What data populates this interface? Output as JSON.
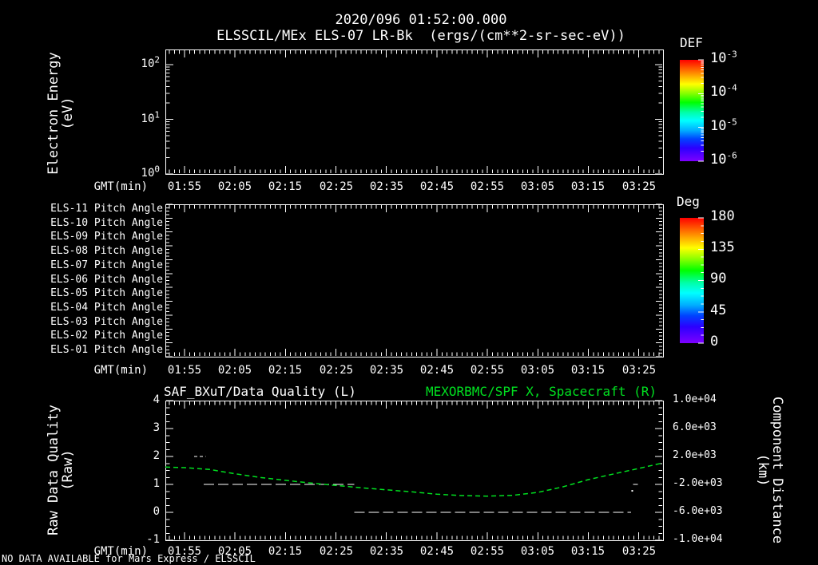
{
  "header": {
    "title": "2020/096 01:52:00.000",
    "subtitle": "ELSSCIL/MEx ELS-07 LR-Bk  (ergs/(cm**2-sr-sec-eV))"
  },
  "time_axis": {
    "label": "GMT(min)",
    "ticks": [
      "01:55",
      "02:05",
      "02:15",
      "02:25",
      "02:35",
      "02:45",
      "02:55",
      "03:05",
      "03:15",
      "03:25"
    ]
  },
  "panel1": {
    "ylabel_line1": "Electron Energy",
    "ylabel_line2": "(eV)",
    "yticks": [
      {
        "base": "10",
        "exp": "2"
      },
      {
        "base": "10",
        "exp": "1"
      },
      {
        "base": "10",
        "exp": "0"
      }
    ],
    "colorbar": {
      "title": "DEF",
      "labels": [
        {
          "base": "10",
          "exp": "-3"
        },
        {
          "base": "10",
          "exp": "-4"
        },
        {
          "base": "10",
          "exp": "-5"
        },
        {
          "base": "10",
          "exp": "-6"
        }
      ]
    }
  },
  "panel2": {
    "row_labels": [
      "ELS-11 Pitch Angle",
      "ELS-10 Pitch Angle",
      "ELS-09 Pitch Angle",
      "ELS-08 Pitch Angle",
      "ELS-07 Pitch Angle",
      "ELS-06 Pitch Angle",
      "ELS-05 Pitch Angle",
      "ELS-04 Pitch Angle",
      "ELS-03 Pitch Angle",
      "ELS-02 Pitch Angle",
      "ELS-01 Pitch Angle"
    ],
    "colorbar": {
      "title": "Deg",
      "labels": [
        "180",
        "135",
        "90",
        "45",
        "0"
      ]
    }
  },
  "panel3": {
    "title_left": "SAF_BXuT/Data Quality (L)",
    "title_right": "MEXORBMC/SPF X, Spacecraft (R)",
    "ylabel_left_line1": "Raw Data Quality",
    "ylabel_left_line2": "(Raw)",
    "ylabel_right_line1": "Component Distance",
    "ylabel_right_line2": "(km)",
    "yticks_left": [
      "4",
      "3",
      "2",
      "1",
      "0",
      "-1"
    ],
    "yticks_right": [
      "1.0e+04",
      "6.0e+03",
      "2.0e+03",
      "-2.0e+03",
      "-6.0e+03",
      "-1.0e+04"
    ]
  },
  "footer": {
    "no_data_text": "NO DATA AVAILABLE for Mars Express / ELSSCIL"
  },
  "colors": {
    "background": "#000000",
    "text": "#ffffff",
    "series_green": "#00e020",
    "rainbow": [
      {
        "at": 0.0,
        "c": "#ff0000"
      },
      {
        "at": 0.08,
        "c": "#ff5500"
      },
      {
        "at": 0.16,
        "c": "#ffaa00"
      },
      {
        "at": 0.24,
        "c": "#ffff00"
      },
      {
        "at": 0.33,
        "c": "#88ff00"
      },
      {
        "at": 0.42,
        "c": "#00ff00"
      },
      {
        "at": 0.52,
        "c": "#00ffaa"
      },
      {
        "at": 0.6,
        "c": "#00ffff"
      },
      {
        "at": 0.7,
        "c": "#00aaff"
      },
      {
        "at": 0.78,
        "c": "#0044ff"
      },
      {
        "at": 0.87,
        "c": "#2b00ff"
      },
      {
        "at": 1.0,
        "c": "#7d00ff"
      }
    ]
  },
  "chart_data": [
    {
      "panel": 1,
      "type": "heatmap",
      "title": "ELSSCIL/MEx ELS-07 LR-Bk (ergs/(cm**2-sr-sec-eV))",
      "ylabel": "Electron Energy (eV)",
      "yscale": "log",
      "ylim": [
        1,
        180
      ],
      "ytick_labels": [
        "10^0",
        "10^1",
        "10^2"
      ],
      "xlabel": "GMT(min)",
      "x_ticks": [
        "01:55",
        "02:05",
        "02:15",
        "02:25",
        "02:35",
        "02:45",
        "02:55",
        "03:05",
        "03:15",
        "03:25"
      ],
      "colorbar": {
        "title": "DEF",
        "scale": "log",
        "tick_labels": [
          "10^-3",
          "10^-4",
          "10^-5",
          "10^-6"
        ],
        "units": "ergs/(cm**2-sr-sec-eV)"
      },
      "values": [],
      "note": "panel is empty - no data plotted"
    },
    {
      "panel": 2,
      "type": "heatmap",
      "rows": [
        "ELS-11 Pitch Angle",
        "ELS-10 Pitch Angle",
        "ELS-09 Pitch Angle",
        "ELS-08 Pitch Angle",
        "ELS-07 Pitch Angle",
        "ELS-06 Pitch Angle",
        "ELS-05 Pitch Angle",
        "ELS-04 Pitch Angle",
        "ELS-03 Pitch Angle",
        "ELS-02 Pitch Angle",
        "ELS-01 Pitch Angle"
      ],
      "xlabel": "GMT(min)",
      "x_ticks": [
        "01:55",
        "02:05",
        "02:15",
        "02:25",
        "02:35",
        "02:45",
        "02:55",
        "03:05",
        "03:15",
        "03:25"
      ],
      "colorbar": {
        "title": "Deg",
        "tick_labels": [
          180,
          135,
          90,
          45,
          0
        ]
      },
      "values": [],
      "note": "panel is empty - no data plotted"
    },
    {
      "panel": 3,
      "type": "line",
      "title_left": "SAF_BXuT/Data Quality (L)",
      "title_right": "MEXORBMC/SPF X, Spacecraft (R)",
      "xlabel": "GMT(min)",
      "x_unit": "decimal minutes since 00:00 GMT",
      "xlim": [
        111.2,
        209.8
      ],
      "x_tick_minutes": [
        115,
        125,
        135,
        145,
        155,
        165,
        175,
        185,
        195,
        205
      ],
      "x_ticks": [
        "01:55",
        "02:05",
        "02:15",
        "02:25",
        "02:35",
        "02:45",
        "02:55",
        "03:05",
        "03:15",
        "03:25"
      ],
      "ylabel_left": "Raw Data Quality (Raw)",
      "ylim_left": [
        -1,
        4
      ],
      "yticks_left": [
        4,
        3,
        2,
        1,
        0,
        -1
      ],
      "ylabel_right": "Component Distance (km)",
      "ylim_right": [
        -10000,
        10000
      ],
      "yticks_right": [
        "1.0e+04",
        "6.0e+03",
        "2.0e+03",
        "-2.0e+03",
        "-6.0e+03",
        "-1.0e+04"
      ],
      "series": [
        {
          "name": "SAF_BXuT/Data Quality (L)",
          "axis": "left",
          "color": "#ffffff",
          "style": "dashed",
          "segments": [
            {
              "value": 2,
              "t0": 116.9,
              "t1": 119.2,
              "dash": "4 3"
            },
            {
              "value": 1,
              "t0": 118.8,
              "t1": 148.6,
              "dash": "13 5"
            },
            {
              "value": 0,
              "t0": 148.6,
              "t1": 203.5,
              "dash": "13 5"
            },
            {
              "value": 1,
              "t0": 203.9,
              "t1": 204.8,
              "dash": "6 3"
            }
          ],
          "points": [
            {
              "t": 203.7,
              "value": 0.77
            }
          ]
        },
        {
          "name": "MEXORBMC/SPF X, Spacecraft (R)",
          "axis": "right",
          "color": "#00e020",
          "style": "dashed",
          "points_t_km": [
            [
              111.2,
              480
            ],
            [
              115,
              400
            ],
            [
              120,
              140
            ],
            [
              125,
              -480
            ],
            [
              130,
              -1000
            ],
            [
              135,
              -1420
            ],
            [
              140,
              -1800
            ],
            [
              145,
              -2150
            ],
            [
              150,
              -2480
            ],
            [
              155,
              -2780
            ],
            [
              160,
              -3060
            ],
            [
              165,
              -3400
            ],
            [
              170,
              -3600
            ],
            [
              175,
              -3680
            ],
            [
              180,
              -3570
            ],
            [
              185,
              -3140
            ],
            [
              190,
              -2340
            ],
            [
              195,
              -1310
            ],
            [
              200,
              -500
            ],
            [
              205,
              290
            ],
            [
              209.8,
              1090
            ]
          ]
        }
      ]
    }
  ]
}
